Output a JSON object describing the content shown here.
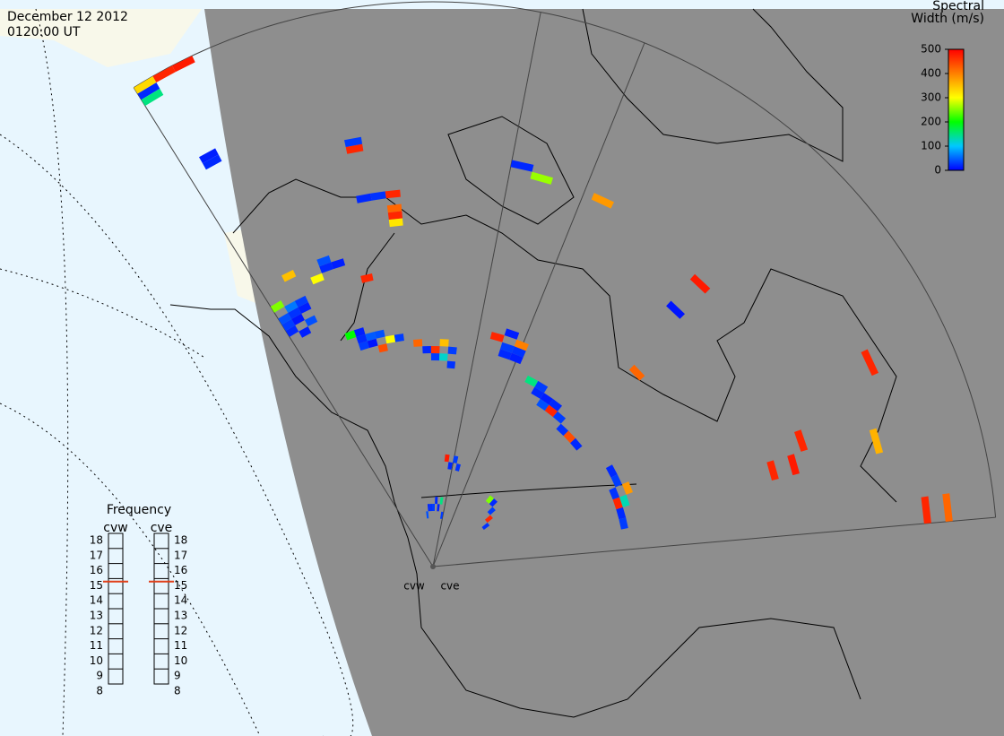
{
  "header": {
    "date": "December 12 2012",
    "time": "0120:00 UT"
  },
  "colorbar": {
    "title": [
      "Spectral",
      "Width (m/s)"
    ],
    "ticks": [
      0,
      100,
      200,
      300,
      400,
      500
    ]
  },
  "frequency": {
    "title": "Frequency",
    "radars": [
      "cvw",
      "cve"
    ],
    "ticks": [
      8,
      9,
      10,
      11,
      12,
      13,
      14,
      15,
      16,
      17,
      18
    ],
    "values": [
      14.8,
      14.8
    ]
  },
  "radars": [
    {
      "name": "cvw",
      "cells": [
        [
          0,
          34,
          20
        ],
        [
          0,
          35,
          30
        ],
        [
          1,
          35,
          10
        ],
        [
          0,
          36,
          40
        ],
        [
          1,
          36,
          25
        ],
        [
          1,
          37,
          60
        ],
        [
          2,
          36,
          15
        ],
        [
          2,
          37,
          30
        ],
        [
          0,
          38,
          250
        ],
        [
          1,
          33,
          15
        ],
        [
          2,
          34,
          40
        ],
        [
          6,
          28,
          30
        ],
        [
          6,
          29,
          20
        ],
        [
          7,
          28,
          10
        ],
        [
          7,
          29,
          45
        ],
        [
          6,
          30,
          15
        ],
        [
          5,
          30,
          200
        ],
        [
          8,
          27,
          440
        ],
        [
          8,
          29,
          40
        ],
        [
          9,
          28,
          300
        ],
        [
          10,
          28,
          30
        ],
        [
          13,
          26,
          20
        ],
        [
          14,
          25,
          30
        ],
        [
          14,
          26,
          460
        ],
        [
          15,
          25,
          120
        ],
        [
          15,
          27,
          350
        ],
        [
          16,
          24,
          25
        ],
        [
          16,
          26,
          30
        ],
        [
          12,
          27,
          420
        ],
        [
          0,
          73,
          20
        ],
        [
          0,
          74,
          330
        ],
        [
          1,
          74,
          470
        ],
        [
          0,
          72,
          150
        ],
        [
          2,
          74,
          480
        ],
        [
          1,
          60,
          20
        ],
        [
          1,
          61,
          15
        ],
        [
          9,
          48,
          20
        ],
        [
          10,
          48,
          25
        ],
        [
          11,
          48,
          470
        ],
        [
          11,
          46,
          420
        ],
        [
          11,
          45,
          470
        ],
        [
          11,
          44,
          320
        ],
        [
          9,
          55,
          470
        ],
        [
          9,
          56,
          30
        ],
        [
          5,
          40,
          20
        ],
        [
          6,
          40,
          15
        ],
        [
          5,
          41,
          40
        ],
        [
          4,
          39,
          300
        ],
        [
          2,
          41,
          350
        ],
        [
          8,
          37,
          470
        ],
        [
          12,
          4,
          20
        ],
        [
          13,
          4,
          25
        ],
        [
          14,
          4,
          30
        ],
        [
          15,
          5,
          20
        ],
        [
          16,
          4,
          15
        ],
        [
          11,
          3,
          40
        ],
        [
          17,
          5,
          150
        ],
        [
          18,
          3,
          30
        ],
        [
          18,
          10,
          20
        ],
        [
          19,
          11,
          30
        ],
        [
          17,
          11,
          480
        ],
        [
          20,
          10,
          25
        ]
      ]
    },
    {
      "name": "cve",
      "cells": [
        [
          6,
          24,
          20
        ],
        [
          6,
          25,
          30
        ],
        [
          7,
          24,
          15
        ],
        [
          7,
          23,
          40
        ],
        [
          5,
          25,
          150
        ],
        [
          8,
          24,
          20
        ],
        [
          8,
          23,
          470
        ],
        [
          9,
          23,
          30
        ],
        [
          10,
          22,
          25
        ],
        [
          11,
          22,
          440
        ],
        [
          12,
          22,
          20
        ],
        [
          2,
          27,
          20
        ],
        [
          2,
          28,
          30
        ],
        [
          3,
          27,
          15
        ],
        [
          3,
          28,
          25
        ],
        [
          3,
          29,
          400
        ],
        [
          1,
          29,
          470
        ],
        [
          2,
          30,
          15
        ],
        [
          16,
          24,
          20
        ],
        [
          17,
          24,
          30
        ],
        [
          18,
          23,
          25
        ],
        [
          19,
          23,
          470
        ],
        [
          20,
          23,
          20
        ],
        [
          21,
          23,
          30
        ],
        [
          18,
          25,
          380
        ],
        [
          19,
          24,
          130
        ],
        [
          20,
          45,
          470
        ],
        [
          20,
          48,
          480
        ],
        [
          19,
          50,
          470
        ],
        [
          23,
          65,
          470
        ],
        [
          23,
          68,
          420
        ],
        [
          17,
          63,
          470
        ],
        [
          20,
          60,
          360
        ],
        [
          10,
          50,
          480
        ],
        [
          10,
          45,
          10
        ],
        [
          11,
          35,
          420
        ],
        [
          4,
          52,
          380
        ],
        [
          1,
          52,
          260
        ],
        [
          0,
          53,
          20
        ],
        [
          10,
          8,
          20
        ],
        [
          11,
          7,
          30
        ],
        [
          9,
          8,
          250
        ],
        [
          12,
          6,
          470
        ],
        [
          13,
          5,
          25
        ]
      ]
    }
  ]
}
